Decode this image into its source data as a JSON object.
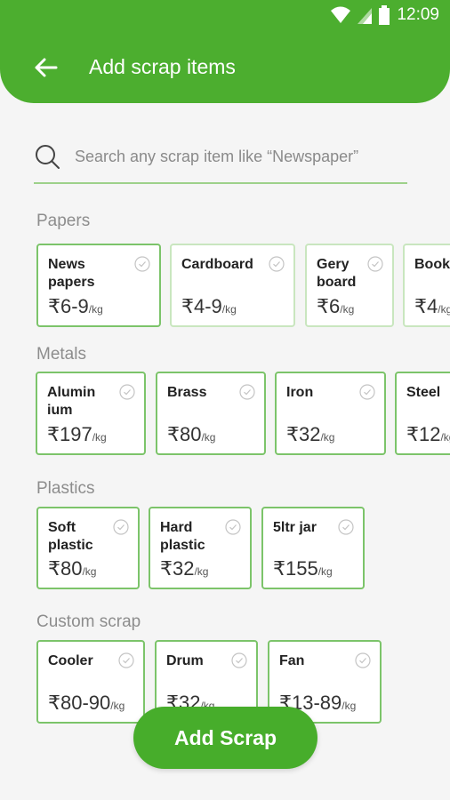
{
  "status_bar": {
    "time": "12:09"
  },
  "app_bar": {
    "title": "Add scrap items"
  },
  "search": {
    "placeholder": "Search any scrap item like “Newspaper”"
  },
  "sections": [
    {
      "title": "Papers",
      "items": [
        {
          "name": "News\npapers",
          "price": "₹6-9",
          "unit": "/kg"
        },
        {
          "name": "Cardboard",
          "price": "₹4-9",
          "unit": "/kg"
        },
        {
          "name": "Gery\nboard",
          "price": "₹6",
          "unit": "/kg"
        },
        {
          "name": "Book",
          "price": "₹4",
          "unit": "/kg"
        }
      ]
    },
    {
      "title": "Metals",
      "items": [
        {
          "name": "Alumin\nium",
          "price": "₹197",
          "unit": "/kg"
        },
        {
          "name": "Brass",
          "price": "₹80",
          "unit": "/kg"
        },
        {
          "name": "Iron",
          "price": "₹32",
          "unit": "/kg"
        },
        {
          "name": "Steel",
          "price": "₹12",
          "unit": "/kg"
        }
      ]
    },
    {
      "title": "Plastics",
      "items": [
        {
          "name": "Soft\nplastic",
          "price": "₹80",
          "unit": "/kg"
        },
        {
          "name": "Hard\nplastic",
          "price": "₹32",
          "unit": "/kg"
        },
        {
          "name": "5ltr jar",
          "price": "₹155",
          "unit": "/kg"
        }
      ]
    },
    {
      "title": "Custom scrap",
      "items": [
        {
          "name": "Cooler",
          "price": "₹80-90",
          "unit": "/kg"
        },
        {
          "name": "Drum",
          "price": "₹32",
          "unit": "/kg"
        },
        {
          "name": "Fan",
          "price": "₹13-89",
          "unit": "/kg"
        }
      ]
    }
  ],
  "fab": {
    "label": "Add Scrap"
  },
  "colors": {
    "primary": "#4cae2f",
    "card_border": "#7cc46a",
    "background": "#f5f5f5"
  }
}
